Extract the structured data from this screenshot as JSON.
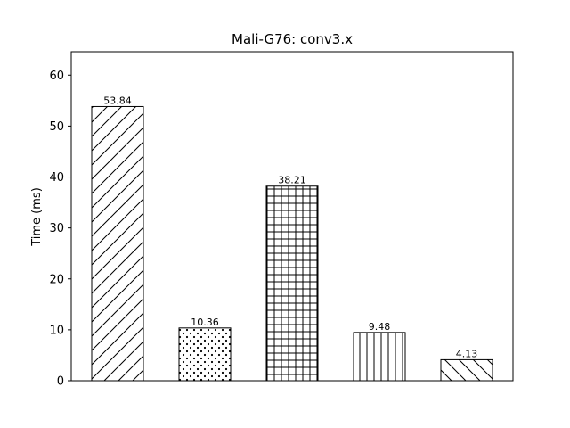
{
  "chart_data": {
    "type": "bar",
    "title": "Mali-G76: conv3.x",
    "xlabel": "",
    "ylabel": "Time (ms)",
    "ylim": [
      0,
      64.6
    ],
    "yticks": [
      0,
      10,
      20,
      30,
      40,
      50,
      60
    ],
    "categories": [
      "",
      "",
      "",
      "",
      ""
    ],
    "values": [
      53.84,
      10.36,
      38.21,
      9.48,
      4.13
    ],
    "data_labels": [
      "53.84",
      "10.36",
      "38.21",
      "9.48",
      "4.13"
    ],
    "hatches": [
      "diagonal-forward",
      "dots",
      "grid",
      "vertical",
      "diagonal-back"
    ],
    "bar_fill": "#ffffff",
    "bar_edge": "#000000",
    "grid": false,
    "legend": "none"
  }
}
